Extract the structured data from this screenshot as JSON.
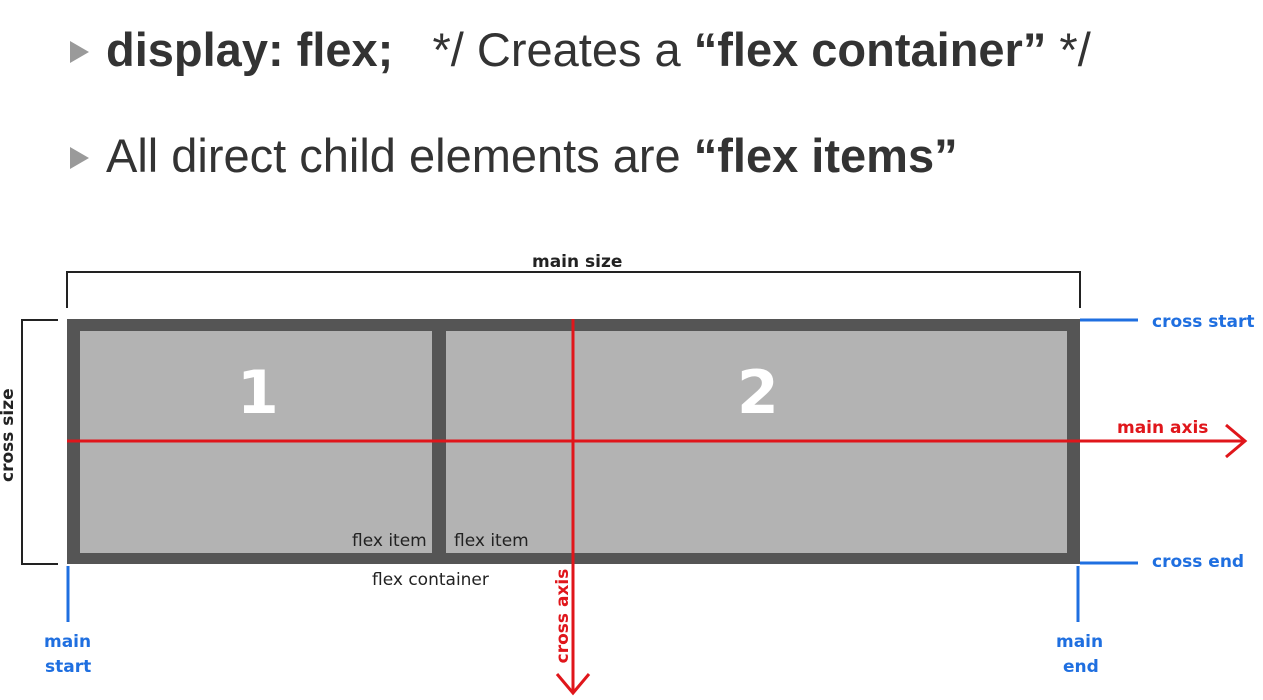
{
  "bullets": {
    "line1": {
      "code": "display: flex;",
      "comment_open": "*/ Creates a",
      "comment_bold": "“flex container”",
      "comment_close": "*/"
    },
    "line2": {
      "text": "All direct child elements are",
      "bold": "“flex items”"
    }
  },
  "diagram": {
    "main_size": "main size",
    "cross_size": "cross size",
    "item1_number": "1",
    "item2_number": "2",
    "item1_label": "flex item",
    "item2_label": "flex item",
    "container_label": "flex container",
    "cross_start": "cross start",
    "cross_end": "cross end",
    "main_axis": "main axis",
    "cross_axis": "cross axis",
    "main_start_line1": "main",
    "main_start_line2": "start",
    "main_end_line1": "main",
    "main_end_line2": "end"
  },
  "colors": {
    "container_border": "#555555",
    "item_fill": "#b3b3b3",
    "axis_red": "#e0161b",
    "marker_blue": "#1f6fe0"
  }
}
